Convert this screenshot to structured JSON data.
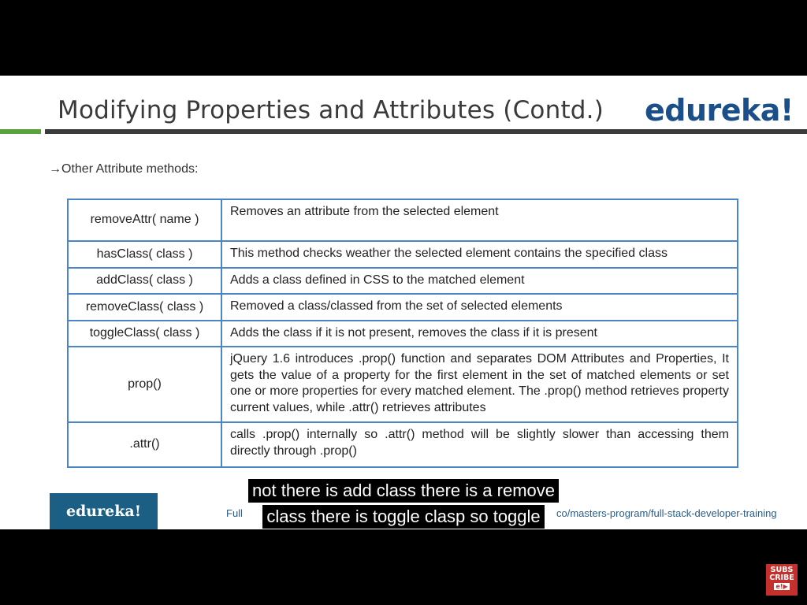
{
  "slide": {
    "title": "Modifying Properties and Attributes (Contd.)",
    "logo": "edureka!",
    "subtitle": "→Other Attribute methods:",
    "methods": [
      {
        "name": "removeAttr( name )",
        "description": "Removes an attribute from the selected element"
      },
      {
        "name": "hasClass( class )",
        "description": "This method checks weather the selected element contains the specified class"
      },
      {
        "name": "addClass( class )",
        "description": "Adds a class defined in CSS to the matched element"
      },
      {
        "name": "removeClass( class )",
        "description": "Removed a class/classed from the set of selected elements"
      },
      {
        "name": "toggleClass( class )",
        "description": "Adds the class if it is not present, removes the class if it is present"
      },
      {
        "name": "prop()",
        "description": "jQuery 1.6 introduces .prop() function and separates DOM Attributes and Properties, It gets the value of a property for the first element in the set of matched elements or set one or more properties for every matched element. The .prop() method retrieves property current values, while .attr() retrieves attributes"
      },
      {
        "name": ".attr()",
        "description": "calls .prop() internally so .attr() method will be slightly slower than accessing them directly through .prop()"
      }
    ],
    "footer": {
      "logo": "edureka!",
      "link_left": "Full",
      "link_right": "co/masters-program/full-stack-developer-training"
    }
  },
  "captions": {
    "line1": "not there is add class there is a remove",
    "line2": "class there is toggle clasp so toggle"
  },
  "subscribe": {
    "line1": "SUBS",
    "line2": "CRIBE",
    "mini": "e!▶"
  }
}
